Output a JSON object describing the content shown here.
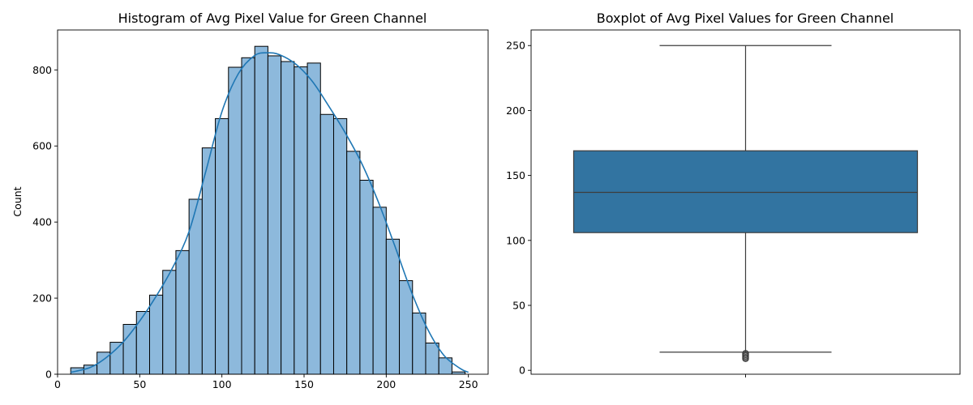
{
  "chart_data": [
    {
      "type": "histogram",
      "title": "Histogram of Avg Pixel Value for Green Channel",
      "xlabel": "",
      "ylabel": "Count",
      "xlim": [
        0,
        262
      ],
      "ylim": [
        0,
        905
      ],
      "xticks": [
        0,
        50,
        100,
        150,
        200,
        250
      ],
      "yticks": [
        0,
        200,
        400,
        600,
        800
      ],
      "bar_color": "#8db9dc",
      "kde_color": "#1f77b4",
      "bins": {
        "start": 8,
        "width": 8,
        "counts": [
          17,
          24,
          58,
          84,
          131,
          165,
          208,
          273,
          325,
          460,
          595,
          672,
          807,
          832,
          862,
          837,
          822,
          808,
          818,
          683,
          672,
          586,
          510,
          439,
          355,
          246,
          161,
          82,
          43,
          6
        ]
      },
      "kde": {
        "x": [
          8,
          20,
          30,
          40,
          50,
          60,
          70,
          80,
          90,
          100,
          110,
          120,
          128,
          135,
          145,
          155,
          165,
          175,
          185,
          195,
          205,
          215,
          225,
          235,
          245,
          250
        ],
        "y": [
          5,
          18,
          45,
          85,
          140,
          205,
          280,
          375,
          530,
          690,
          790,
          838,
          845,
          840,
          815,
          770,
          705,
          635,
          555,
          455,
          340,
          220,
          120,
          50,
          15,
          5
        ]
      }
    },
    {
      "type": "boxplot",
      "title": "Boxplot of Avg Pixel Values for Green Channel",
      "xlabel": "",
      "ylabel": "",
      "ylim": [
        -3,
        262
      ],
      "yticks": [
        0,
        50,
        100,
        150,
        200,
        250
      ],
      "box_color": "#3274a1",
      "q1": 106,
      "median": 137,
      "q3": 169,
      "whisker_low": 14,
      "whisker_high": 250,
      "outliers": [
        13,
        12,
        11,
        10,
        9
      ]
    }
  ]
}
